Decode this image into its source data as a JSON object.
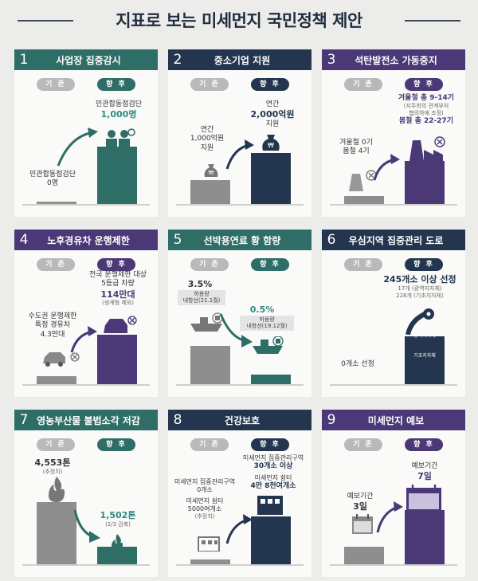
{
  "title": "지표로 보는 미세먼지 국민정책 제안",
  "labels": {
    "before": "기 존",
    "after": "향 후"
  },
  "panels": [
    {
      "num": "1",
      "title": "사업장 집중감시",
      "before": [
        "민관합동점검단",
        "0명"
      ],
      "after": [
        "민관합동점검단",
        "1,000명"
      ]
    },
    {
      "num": "2",
      "title": "중소기업 지원",
      "before": [
        "연간",
        "1,000억원",
        "지원"
      ],
      "after": [
        "연간",
        "2,000억원",
        "지원"
      ]
    },
    {
      "num": "3",
      "title": "석탄발전소 가동중지",
      "before": [
        "겨울철 0기",
        "봄철 4기"
      ],
      "after": [
        "겨울철 총 9-14기",
        "(지주회의 관계부처",
        "협의하에 조정)",
        "봄철 총 22-27기"
      ]
    },
    {
      "num": "4",
      "title": "노후경유차 운행제한",
      "before": [
        "수도권 운행제한",
        "특정 경유차",
        "4.3만대"
      ],
      "after": [
        "전국 운행제한 대상",
        "5등급 차량",
        "114만대",
        "(생계형 제외)"
      ]
    },
    {
      "num": "5",
      "title": "선박용연료 황 함량",
      "before": [
        "3.5%",
        "허용량",
        "내항선(21.1월)"
      ],
      "after": [
        "0.5%",
        "허용량",
        "내항선(19.12월)"
      ]
    },
    {
      "num": "6",
      "title": "우심지역 집중관리 도로",
      "before": [
        "0개소 선정"
      ],
      "after": [
        "245개소 이상 선정",
        "17개 (광역지자체)",
        "228개 (기초지자체)",
        "광역지자체",
        "기초지자체"
      ]
    },
    {
      "num": "7",
      "title": "영농부산물 불법소각 저감",
      "before": [
        "4,553톤",
        "(추정치)"
      ],
      "after": [
        "1,502톤",
        "(2/3 감축)"
      ]
    },
    {
      "num": "8",
      "title": "건강보호",
      "before": [
        "미세먼지 집중관리구역",
        "0개소",
        "미세먼지 쉼터",
        "5000여개소",
        "(추정치)"
      ],
      "after": [
        "미세먼지 집중관리구역",
        "30개소 이상",
        "미세먼지 쉼터",
        "4만 8천여개소"
      ]
    },
    {
      "num": "9",
      "title": "미세먼지 예보",
      "before": [
        "예보기간",
        "3일"
      ],
      "after": [
        "예보기간",
        "7일"
      ]
    }
  ],
  "colors": {
    "green": "#2f6e66",
    "navy": "#24364f",
    "purple": "#4a3877",
    "gray": "#8e8e8e"
  }
}
